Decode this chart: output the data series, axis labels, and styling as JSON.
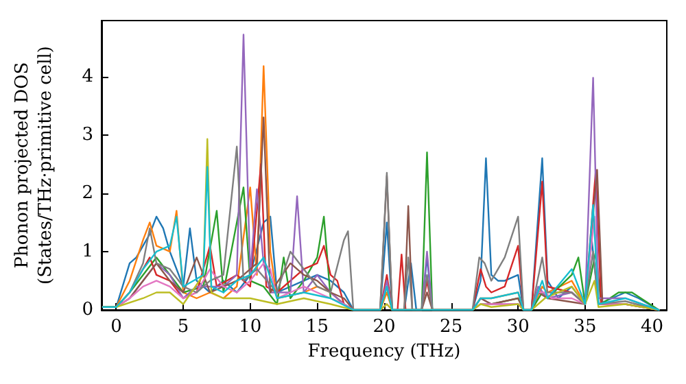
{
  "chart_data": {
    "type": "line",
    "xlabel": "Frequency (THz)",
    "ylabel": "Phonon projected DOS\n(States/THz·primitive cell)",
    "xlim": [
      -1.1,
      41.1
    ],
    "ylim": [
      0,
      4.96
    ],
    "xticks": [
      0,
      5,
      10,
      15,
      20,
      25,
      30,
      35,
      40
    ],
    "yticks": [
      0,
      1,
      2,
      3,
      4
    ],
    "grid": false,
    "marker": "none",
    "line_style": "solid",
    "series": [
      {
        "color": "#1f77b4",
        "x": [
          -1,
          0,
          1,
          1.5,
          2.5,
          3,
          3.5,
          4,
          5,
          5.5,
          6,
          7,
          8,
          9,
          10,
          11,
          11.5,
          12,
          14,
          15,
          16,
          17,
          17.7,
          19.7,
          20.2,
          20.6,
          21.5,
          22,
          22.4,
          22.8,
          23.2,
          23.6,
          26.6,
          27.2,
          27.6,
          28,
          28.5,
          29,
          30,
          30.4,
          31,
          31.4,
          31.8,
          32.2,
          33,
          34,
          35,
          35.5,
          36,
          37,
          38,
          39,
          40.5
        ],
        "values": [
          0.05,
          0.05,
          0.8,
          0.9,
          1.3,
          1.6,
          1.4,
          1,
          0.4,
          1.4,
          0.5,
          0.3,
          0.5,
          0.3,
          0.6,
          1.5,
          1.6,
          0.3,
          0.5,
          0.6,
          0.5,
          0.3,
          0,
          0,
          1.5,
          0,
          0,
          0.8,
          0,
          0,
          0.9,
          0,
          0,
          0.5,
          2.6,
          0.6,
          0.5,
          0.5,
          0.6,
          0,
          0,
          1.3,
          2.6,
          0.5,
          0.2,
          0.4,
          0.1,
          1.2,
          0.1,
          0.2,
          0.3,
          0.2,
          0
        ]
      },
      {
        "color": "#ff7f0e",
        "x": [
          -1,
          0,
          1,
          2,
          2.5,
          3,
          4,
          4.5,
          5,
          6,
          7,
          8,
          9,
          10,
          10.5,
          11,
          11.5,
          12,
          14,
          15,
          16,
          17,
          17.7,
          19.7,
          20.2,
          20.6,
          26.6,
          27.2,
          28,
          30,
          30.4,
          31,
          31.8,
          32.2,
          34,
          35
        ],
        "values": [
          0.05,
          0.05,
          0.5,
          1.2,
          1.5,
          1.1,
          1,
          1.7,
          0.3,
          0.2,
          0.3,
          0.2,
          0.4,
          2.1,
          0.6,
          4.18,
          1,
          0.2,
          0.3,
          0.4,
          0.3,
          0.1,
          0,
          0,
          0.3,
          0,
          0,
          0.2,
          0.2,
          0.3,
          0,
          0,
          0.4,
          0.3,
          0.5,
          0.1
        ]
      },
      {
        "color": "#2ca02c",
        "x": [
          -1,
          0,
          1,
          2,
          3,
          4,
          5,
          6.5,
          7.5,
          8,
          9,
          9.5,
          10,
          11,
          12,
          12.5,
          13,
          14,
          15,
          15.5,
          16,
          17,
          17.7,
          19.7,
          20.2,
          20.6,
          22.8,
          23.2,
          23.6,
          26.6,
          27.2,
          28,
          30,
          30.4,
          31,
          31.8,
          32.2,
          34,
          34.5,
          35,
          35.8,
          36.2,
          37.5,
          38.5,
          40.5
        ],
        "values": [
          0.05,
          0.05,
          0.3,
          0.6,
          0.9,
          0.6,
          0.3,
          0.4,
          1.7,
          0.3,
          1.5,
          2.1,
          0.5,
          0.4,
          0.1,
          0.9,
          0.2,
          0.5,
          0.9,
          1.6,
          0.2,
          0.1,
          0,
          0,
          0.4,
          0,
          0,
          2.7,
          0,
          0,
          0.1,
          0.1,
          0.2,
          0,
          0,
          0.3,
          0.2,
          0.6,
          0.9,
          0.1,
          1,
          0.1,
          0.3,
          0.3,
          0
        ]
      },
      {
        "color": "#d62728",
        "x": [
          -1,
          0,
          1,
          2,
          2.5,
          3,
          4,
          5,
          6,
          7,
          7.5,
          9,
          10,
          10.8,
          11.2,
          12,
          14,
          15,
          15.5,
          16,
          16.5,
          17,
          17.7,
          19.7,
          20.2,
          20.6,
          21,
          21.3,
          21.6,
          22.8,
          23.2,
          23.6,
          26.6,
          27.2,
          27.6,
          28,
          29,
          30,
          30.4,
          31,
          31.8,
          32.2,
          34,
          35,
          35.8,
          36.2,
          38,
          40.5
        ],
        "values": [
          0.05,
          0.05,
          0.3,
          0.7,
          0.9,
          0.6,
          0.5,
          0.2,
          0.3,
          1.1,
          0.4,
          0.6,
          0.4,
          2.5,
          0.4,
          0.3,
          0.7,
          0.8,
          1.1,
          0.6,
          0.5,
          0.1,
          0,
          0,
          0.6,
          0,
          0,
          0.95,
          0,
          0,
          0.5,
          0,
          0,
          0.7,
          0.4,
          0.3,
          0.4,
          1.1,
          0,
          0,
          2.2,
          0.4,
          0.3,
          0.1,
          2.4,
          0.1,
          0.1,
          0
        ]
      },
      {
        "color": "#9467bd",
        "x": [
          -1,
          0,
          1,
          2,
          3,
          4,
          5,
          6,
          8,
          9,
          9.5,
          10,
          10.5,
          11,
          11.5,
          13,
          13.5,
          14,
          15,
          16,
          17,
          17.7,
          19.7,
          20.2,
          20.6,
          22.8,
          23.2,
          23.6,
          26.6,
          27.2,
          28,
          30,
          30.4,
          31,
          31.5,
          32.2,
          34,
          35,
          35.6,
          36,
          38,
          40.5
        ],
        "values": [
          0.05,
          0.05,
          0.2,
          0.5,
          0.8,
          0.6,
          0.2,
          0.4,
          0.4,
          0.6,
          4.72,
          0.6,
          2.07,
          0.8,
          0.3,
          0.3,
          1.95,
          0.3,
          0.6,
          0.3,
          0.1,
          0,
          0,
          0.5,
          0,
          0,
          1,
          0,
          0,
          0.2,
          0.1,
          0.1,
          0,
          0,
          0.4,
          0.2,
          0.3,
          0.1,
          3.98,
          0.2,
          0.2,
          0
        ]
      },
      {
        "color": "#8c564b",
        "x": [
          -1,
          0,
          1,
          2,
          3,
          4,
          5,
          6,
          7,
          9,
          10.5,
          11,
          11.5,
          13,
          14,
          15,
          16,
          17,
          17.7,
          19.7,
          20.2,
          20.6,
          21.5,
          21.8,
          22.1,
          22.8,
          23.2,
          23.6,
          26.6,
          27.2,
          28,
          30,
          30.4,
          31,
          31.5,
          32.2,
          35,
          35.9,
          36.3,
          38,
          40.5
        ],
        "values": [
          0.05,
          0.05,
          0.2,
          0.5,
          0.8,
          0.5,
          0.3,
          0.9,
          0.3,
          0.5,
          0.8,
          3.3,
          0.3,
          0.8,
          0.6,
          0.5,
          0.3,
          0.2,
          0,
          0,
          2.3,
          0,
          0,
          1.78,
          0,
          0,
          0.3,
          0,
          0,
          0.2,
          0.1,
          0.2,
          0,
          0,
          0.3,
          0.2,
          0.1,
          2.4,
          0.1,
          0.1,
          0
        ]
      },
      {
        "color": "#e377c2",
        "x": [
          -1,
          0,
          1,
          2,
          3,
          4,
          5,
          6,
          7,
          8,
          9,
          10,
          11,
          11.5,
          12,
          14,
          15,
          16,
          17,
          17.7,
          19.7,
          20.2,
          20.6,
          26.6,
          27.2,
          28,
          30,
          30.4,
          31,
          31.5,
          32,
          32.5,
          34,
          35,
          35.7,
          36,
          38,
          40.5
        ],
        "values": [
          0.05,
          0.05,
          0.2,
          0.4,
          0.5,
          0.4,
          0.2,
          0.3,
          0.7,
          0.4,
          0.3,
          0.5,
          0.8,
          0.7,
          0.2,
          0.4,
          0.3,
          0.2,
          0.1,
          0,
          0,
          0.1,
          0,
          0,
          0.1,
          0.1,
          0.1,
          0,
          0,
          0.3,
          0.3,
          0.2,
          0.2,
          0.1,
          1.6,
          0.1,
          0.1,
          0
        ]
      },
      {
        "color": "#7f7f7f",
        "x": [
          -1,
          0,
          1,
          2,
          2.5,
          3,
          4,
          5,
          6,
          7,
          8,
          9,
          9.5,
          10.5,
          12,
          13,
          14,
          15,
          16,
          17,
          17.3,
          17.7,
          19.7,
          20.2,
          20.6,
          21.5,
          21.8,
          22.1,
          22.8,
          23.2,
          23.6,
          26.6,
          27.1,
          27.5,
          28,
          29,
          30,
          30.4,
          31,
          31.8,
          32.2,
          34,
          35,
          35.6,
          36,
          38,
          40.5
        ],
        "values": [
          0.05,
          0.05,
          0.3,
          0.8,
          1.4,
          0.8,
          0.7,
          0.4,
          0.3,
          0.5,
          0.6,
          2.8,
          0.5,
          0.7,
          0.3,
          1,
          0.7,
          0.4,
          0.3,
          1.2,
          1.35,
          0,
          0,
          2.35,
          0,
          0,
          0.9,
          0,
          0,
          0.6,
          0,
          0,
          0.9,
          0.8,
          0.5,
          0.9,
          1.6,
          0,
          0,
          0.9,
          0.3,
          0.3,
          0.1,
          1,
          0.1,
          0.15,
          0
        ]
      },
      {
        "color": "#bcbd22",
        "x": [
          -1,
          0,
          2,
          3,
          4,
          5,
          6.5,
          6.8,
          7.1,
          8,
          10,
          12,
          14,
          16,
          17.7,
          19.7,
          20.2,
          20.6,
          26.6,
          27.2,
          28,
          30,
          30.4,
          31,
          32,
          34,
          35,
          35.7,
          36,
          38,
          40.5
        ],
        "values": [
          0.05,
          0.05,
          0.2,
          0.3,
          0.3,
          0.1,
          0.6,
          2.93,
          0.3,
          0.2,
          0.2,
          0.1,
          0.2,
          0.1,
          0,
          0,
          0.1,
          0,
          0,
          0.1,
          0.05,
          0.1,
          0,
          0,
          0.2,
          0.4,
          0.1,
          0.5,
          0.05,
          0.1,
          0
        ]
      },
      {
        "color": "#17becf",
        "x": [
          -1,
          0,
          1,
          2,
          3,
          4,
          4.5,
          5,
          6.5,
          6.8,
          7.1,
          8,
          9,
          10,
          11,
          12,
          14,
          16,
          17.7,
          19.7,
          20.2,
          20.6,
          26.6,
          27.2,
          28,
          30,
          30.4,
          31,
          31.8,
          32.2,
          34,
          35,
          35.6,
          36,
          38,
          40.5
        ],
        "values": [
          0.05,
          0.05,
          0.3,
          0.7,
          1,
          1.1,
          1.6,
          0.4,
          0.6,
          2.45,
          0.4,
          0.3,
          0.5,
          0.6,
          0.9,
          0.2,
          0.3,
          0.2,
          0,
          0,
          0.4,
          0,
          0,
          0.2,
          0.2,
          0.3,
          0,
          0,
          0.5,
          0.2,
          0.7,
          0.1,
          1.8,
          0.1,
          0.2,
          0
        ]
      }
    ]
  }
}
